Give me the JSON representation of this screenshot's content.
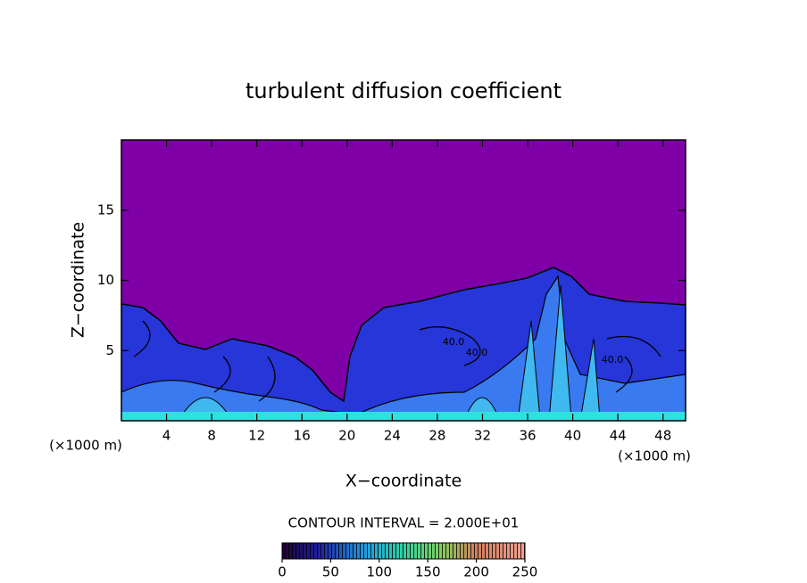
{
  "chart_data": {
    "type": "heatmap",
    "title": "turbulent diffusion coefficient",
    "x_label": "X−coordinate",
    "y_label": "Z−coordinate",
    "x_unit": "(×1000 m)",
    "y_unit": "(×1000 m)",
    "xlim": [
      0,
      50
    ],
    "xticks": [
      4,
      8,
      12,
      16,
      20,
      24,
      28,
      32,
      36,
      40,
      44,
      48
    ],
    "ylim": [
      0,
      20
    ],
    "yticks": [
      5,
      10,
      15
    ],
    "contour_interval": "CONTOUR INTERVAL = 2.000E+01",
    "contour_labels": [
      "40.0",
      "40.0",
      "40.0"
    ],
    "colorbar": {
      "lim": [
        0,
        250
      ],
      "ticks": [
        0,
        50,
        100,
        150,
        200,
        250
      ]
    }
  }
}
